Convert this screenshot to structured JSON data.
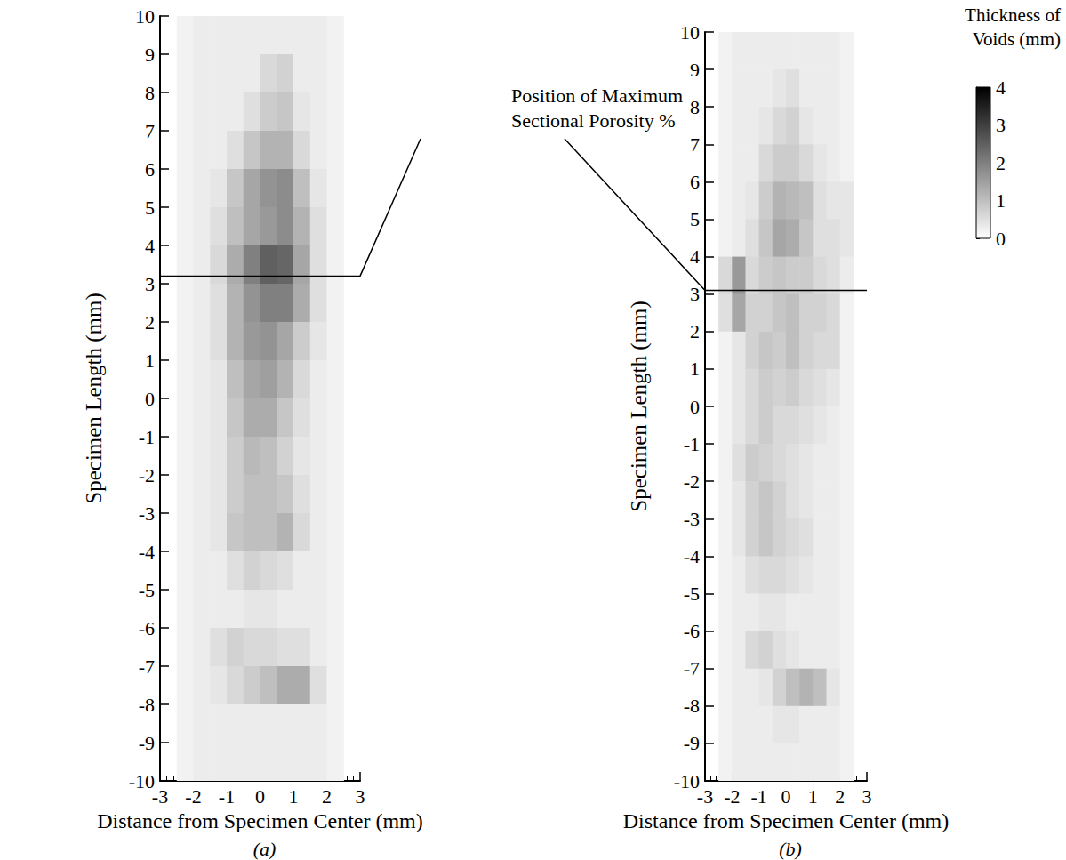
{
  "chart_data": [
    {
      "type": "heatmap",
      "subtitle": "(a)",
      "x_label": "Distance from Specimen Center (mm)",
      "y_label": "Specimen Length (mm)",
      "xlim": [
        -3,
        3
      ],
      "xticks": [
        -3,
        -2,
        -1,
        0,
        1,
        2,
        3
      ],
      "ylim": [
        -10,
        10
      ],
      "yticks": [
        -10,
        -9,
        -8,
        -7,
        -6,
        -5,
        -4,
        -3,
        -2,
        -1,
        0,
        1,
        2,
        3,
        4,
        5,
        6,
        7,
        8,
        9,
        10
      ],
      "max_porosity_y": 3.2,
      "x": [
        -2.25,
        -1.75,
        -1.25,
        -0.75,
        -0.25,
        0.25,
        0.75,
        1.25,
        1.75,
        2.25
      ],
      "y": [
        9.5,
        8.5,
        7.5,
        6.5,
        5.5,
        4.5,
        3.5,
        2.5,
        1.5,
        0.5,
        -0.5,
        -1.5,
        -2.5,
        -3.5,
        -4.5,
        -5.5,
        -6.5,
        -7.5,
        -8.5,
        -9.5
      ],
      "cells": [
        [
          0.2,
          0.3,
          0.3,
          0.3,
          0.3,
          0.3,
          0.3,
          0.3,
          0.3,
          0.2
        ],
        [
          0.2,
          0.3,
          0.3,
          0.3,
          0.3,
          0.6,
          0.7,
          0.3,
          0.3,
          0.2
        ],
        [
          0.2,
          0.3,
          0.3,
          0.3,
          0.5,
          0.8,
          0.9,
          0.4,
          0.3,
          0.2
        ],
        [
          0.2,
          0.3,
          0.3,
          0.5,
          0.9,
          1.2,
          1.2,
          0.6,
          0.3,
          0.2
        ],
        [
          0.2,
          0.3,
          0.4,
          0.9,
          1.4,
          1.7,
          1.8,
          1.0,
          0.4,
          0.2
        ],
        [
          0.2,
          0.3,
          0.5,
          1.0,
          1.4,
          1.6,
          1.8,
          1.2,
          0.5,
          0.2
        ],
        [
          0.2,
          0.3,
          0.6,
          1.3,
          2.0,
          2.5,
          2.4,
          1.4,
          0.5,
          0.2
        ],
        [
          0.2,
          0.3,
          0.5,
          1.2,
          1.7,
          2.0,
          2.0,
          1.3,
          0.5,
          0.2
        ],
        [
          0.2,
          0.3,
          0.5,
          1.2,
          1.6,
          1.7,
          1.4,
          0.8,
          0.4,
          0.2
        ],
        [
          0.2,
          0.3,
          0.4,
          1.0,
          1.4,
          1.5,
          1.2,
          0.6,
          0.3,
          0.2
        ],
        [
          0.2,
          0.3,
          0.4,
          0.9,
          1.3,
          1.3,
          0.9,
          0.5,
          0.3,
          0.2
        ],
        [
          0.2,
          0.3,
          0.4,
          0.8,
          1.1,
          1.0,
          0.7,
          0.4,
          0.3,
          0.2
        ],
        [
          0.2,
          0.3,
          0.4,
          0.8,
          1.0,
          1.0,
          0.9,
          0.5,
          0.3,
          0.2
        ],
        [
          0.2,
          0.3,
          0.4,
          0.9,
          1.0,
          1.0,
          1.2,
          0.6,
          0.3,
          0.2
        ],
        [
          0.2,
          0.3,
          0.3,
          0.5,
          0.7,
          0.6,
          0.5,
          0.3,
          0.3,
          0.2
        ],
        [
          0.2,
          0.3,
          0.3,
          0.3,
          0.4,
          0.4,
          0.3,
          0.3,
          0.3,
          0.2
        ],
        [
          0.2,
          0.3,
          0.5,
          0.7,
          0.6,
          0.6,
          0.5,
          0.5,
          0.3,
          0.2
        ],
        [
          0.2,
          0.3,
          0.4,
          0.6,
          0.8,
          1.0,
          1.3,
          1.3,
          0.5,
          0.2
        ],
        [
          0.2,
          0.3,
          0.3,
          0.3,
          0.3,
          0.3,
          0.3,
          0.3,
          0.3,
          0.2
        ],
        [
          0.2,
          0.3,
          0.3,
          0.3,
          0.3,
          0.3,
          0.3,
          0.3,
          0.3,
          0.2
        ]
      ]
    },
    {
      "type": "heatmap",
      "subtitle": "(b)",
      "x_label": "Distance from Specimen Center (mm)",
      "y_label": "Specimen Length (mm)",
      "xlim": [
        -3,
        3
      ],
      "xticks": [
        -3,
        -2,
        -1,
        0,
        1,
        2,
        3
      ],
      "ylim": [
        -10,
        10
      ],
      "yticks": [
        -10,
        -9,
        -8,
        -7,
        -6,
        -5,
        -4,
        -3,
        -2,
        -1,
        0,
        1,
        2,
        3,
        4,
        5,
        6,
        7,
        8,
        9,
        10
      ],
      "max_porosity_y": 3.1,
      "x": [
        -2.25,
        -1.75,
        -1.25,
        -0.75,
        -0.25,
        0.25,
        0.75,
        1.25,
        1.75,
        2.25
      ],
      "y": [
        9.5,
        8.5,
        7.5,
        6.5,
        5.5,
        4.5,
        3.5,
        2.5,
        1.5,
        0.5,
        -0.5,
        -1.5,
        -2.5,
        -3.5,
        -4.5,
        -5.5,
        -6.5,
        -7.5,
        -8.5,
        -9.5
      ],
      "cells": [
        [
          0.2,
          0.3,
          0.3,
          0.3,
          0.3,
          0.3,
          0.3,
          0.3,
          0.3,
          0.2
        ],
        [
          0.2,
          0.3,
          0.3,
          0.3,
          0.4,
          0.5,
          0.3,
          0.3,
          0.3,
          0.2
        ],
        [
          0.2,
          0.3,
          0.3,
          0.4,
          0.6,
          0.7,
          0.4,
          0.3,
          0.3,
          0.2
        ],
        [
          0.2,
          0.3,
          0.3,
          0.6,
          0.8,
          0.8,
          0.6,
          0.4,
          0.3,
          0.2
        ],
        [
          0.2,
          0.3,
          0.4,
          0.8,
          1.2,
          1.1,
          1.0,
          0.5,
          0.4,
          0.4
        ],
        [
          0.2,
          0.3,
          0.5,
          0.9,
          1.4,
          1.3,
          0.9,
          0.5,
          0.5,
          0.4
        ],
        [
          0.6,
          1.6,
          0.6,
          0.8,
          0.9,
          0.8,
          0.8,
          0.6,
          0.5,
          0.3
        ],
        [
          0.5,
          1.4,
          0.7,
          0.7,
          0.9,
          1.0,
          0.7,
          0.7,
          0.6,
          0.2
        ],
        [
          0.2,
          0.4,
          0.7,
          0.9,
          0.8,
          1.0,
          0.7,
          0.6,
          0.6,
          0.2
        ],
        [
          0.2,
          0.4,
          0.6,
          0.8,
          0.7,
          0.8,
          0.6,
          0.5,
          0.4,
          0.2
        ],
        [
          0.2,
          0.4,
          0.6,
          0.8,
          0.6,
          0.6,
          0.5,
          0.4,
          0.3,
          0.2
        ],
        [
          0.2,
          0.5,
          0.8,
          0.7,
          0.6,
          0.5,
          0.4,
          0.3,
          0.3,
          0.2
        ],
        [
          0.2,
          0.4,
          0.7,
          0.9,
          0.7,
          0.5,
          0.4,
          0.3,
          0.3,
          0.2
        ],
        [
          0.2,
          0.4,
          0.7,
          0.9,
          0.7,
          0.6,
          0.5,
          0.3,
          0.3,
          0.2
        ],
        [
          0.2,
          0.3,
          0.5,
          0.6,
          0.6,
          0.5,
          0.4,
          0.3,
          0.3,
          0.2
        ],
        [
          0.2,
          0.3,
          0.3,
          0.4,
          0.4,
          0.3,
          0.3,
          0.3,
          0.3,
          0.2
        ],
        [
          0.2,
          0.3,
          0.6,
          0.7,
          0.5,
          0.4,
          0.3,
          0.3,
          0.3,
          0.2
        ],
        [
          0.2,
          0.3,
          0.3,
          0.4,
          0.7,
          1.0,
          1.2,
          1.0,
          0.4,
          0.2
        ],
        [
          0.2,
          0.3,
          0.3,
          0.3,
          0.4,
          0.4,
          0.3,
          0.3,
          0.3,
          0.2
        ],
        [
          0.2,
          0.3,
          0.3,
          0.3,
          0.3,
          0.3,
          0.3,
          0.3,
          0.3,
          0.2
        ]
      ]
    }
  ],
  "annotation": "Position of Maximum Sectional Porosity %",
  "color_bar": {
    "title": "Thickness of Voids (mm)",
    "range": [
      0,
      4
    ],
    "ticks": [
      0,
      1,
      2,
      3,
      4
    ]
  }
}
